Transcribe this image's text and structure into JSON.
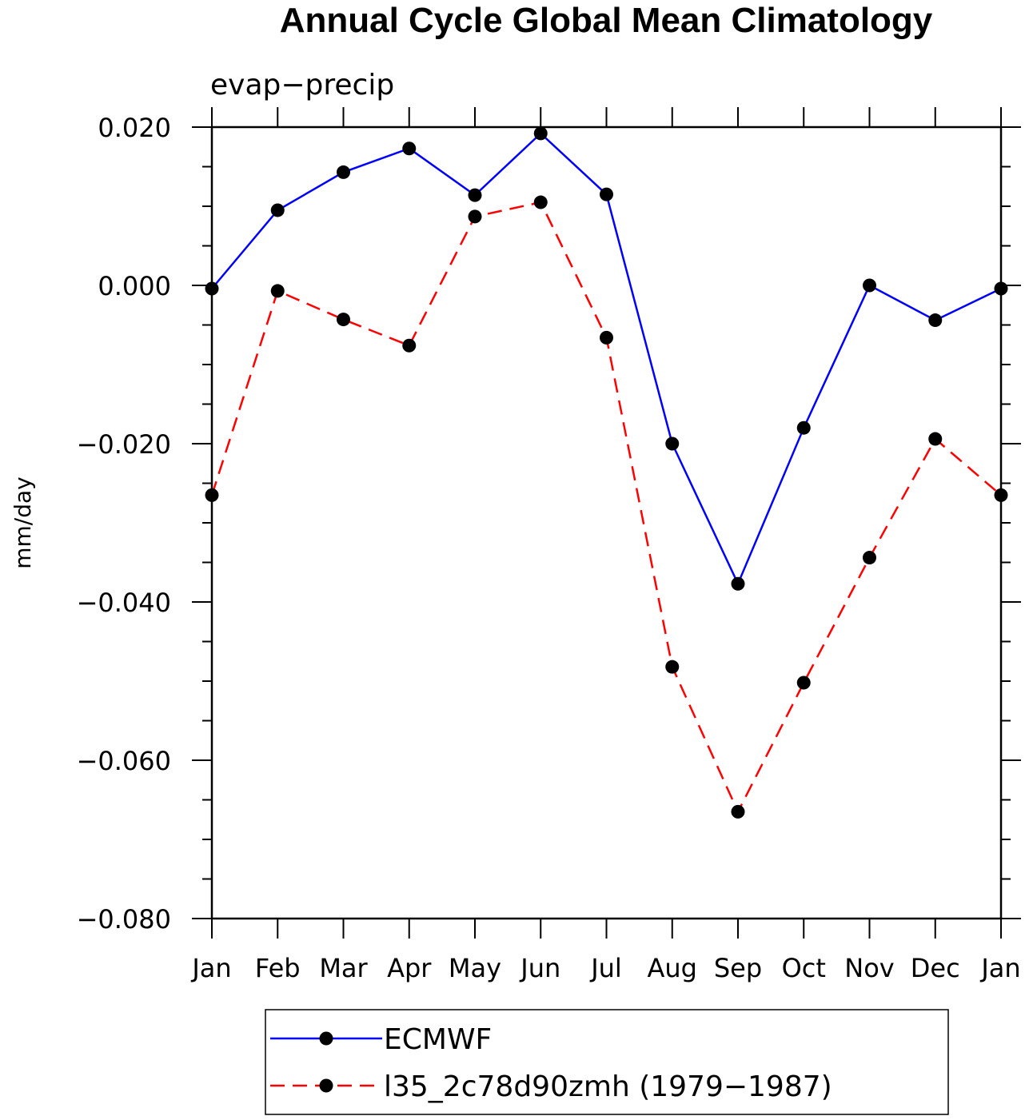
{
  "chart_data": {
    "type": "line",
    "title": "Annual Cycle Global Mean Climatology",
    "subtitle": "evap−precip",
    "ylabel": "mm/day",
    "xlabel": "",
    "categories": [
      "Jan",
      "Feb",
      "Mar",
      "Apr",
      "May",
      "Jun",
      "Jul",
      "Aug",
      "Sep",
      "Oct",
      "Nov",
      "Dec",
      "Jan"
    ],
    "ylim": [
      -0.08,
      0.02
    ],
    "yticks": [
      0.02,
      0.0,
      -0.02,
      -0.04,
      -0.06,
      -0.08
    ],
    "ytick_labels": [
      "0.020",
      "0.000",
      "−0.020",
      "−0.040",
      "−0.060",
      "−0.080"
    ],
    "grid": false,
    "legend_position": "bottom",
    "series": [
      {
        "name": "ECMWF",
        "color": "#0000ff",
        "line_style": "solid",
        "marker": "filled-circle",
        "values": [
          -0.0004,
          0.0095,
          0.0143,
          0.0173,
          0.0114,
          0.0192,
          0.0115,
          -0.02,
          -0.0377,
          -0.018,
          0.0,
          -0.0044,
          -0.0004
        ]
      },
      {
        "name": "l35_2c78d90zmh (1979−1987)",
        "color": "#ff0000",
        "line_style": "dashed",
        "marker": "filled-circle",
        "values": [
          -0.0265,
          -0.0007,
          -0.0043,
          -0.0076,
          0.0087,
          0.0105,
          -0.0066,
          -0.0482,
          -0.0665,
          -0.0502,
          -0.0344,
          -0.0194,
          -0.0265
        ]
      }
    ]
  }
}
